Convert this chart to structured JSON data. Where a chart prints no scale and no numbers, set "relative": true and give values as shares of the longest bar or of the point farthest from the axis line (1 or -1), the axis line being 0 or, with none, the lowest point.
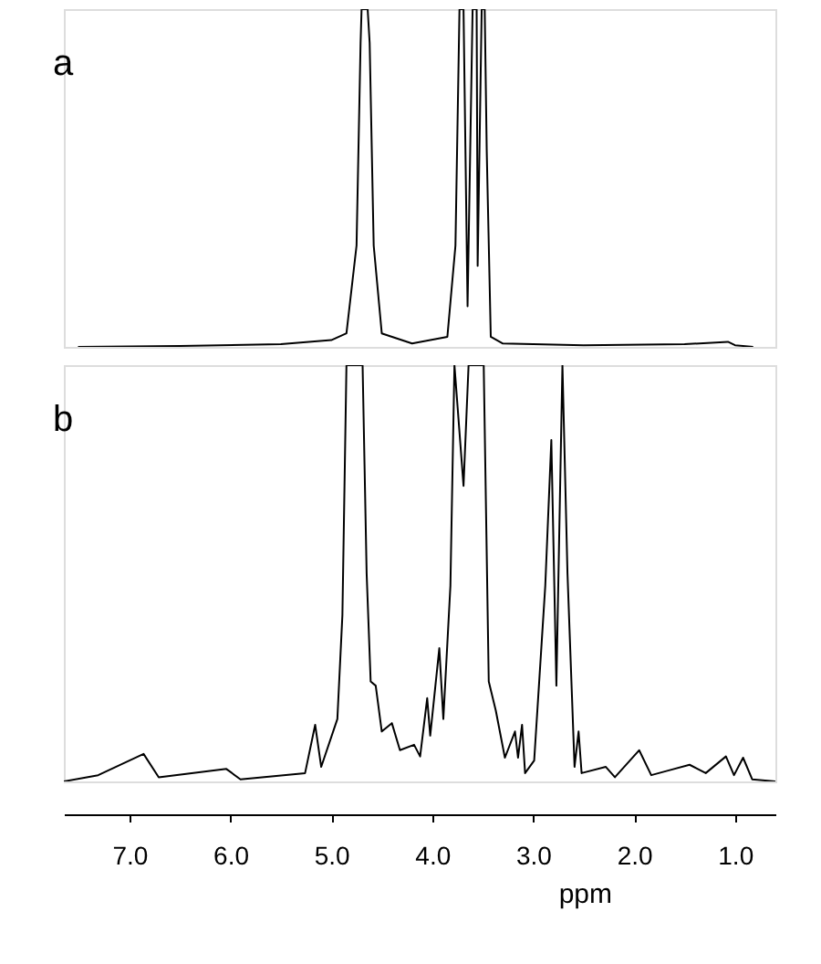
{
  "chart_data": [
    {
      "type": "line",
      "relative": true,
      "annotations": [
        "a"
      ],
      "xlim": [
        7.65,
        0.6
      ],
      "tick_labels": false,
      "series": [
        {
          "color": "#000000",
          "x": [
            7.51,
            6.5,
            5.5,
            5.0,
            4.85,
            4.75,
            4.71,
            4.7,
            4.64,
            4.62,
            4.58,
            4.5,
            4.2,
            3.85,
            3.77,
            3.73,
            3.69,
            3.65,
            3.6,
            3.56,
            3.55,
            3.51,
            3.48,
            3.46,
            3.42,
            3.3,
            2.5,
            1.5,
            1.07,
            1.0,
            0.82
          ],
          "values": [
            0,
            0.003,
            0.008,
            0.02,
            0.04,
            0.3,
            0.9,
            1,
            1,
            0.9,
            0.3,
            0.04,
            0.01,
            0.03,
            0.3,
            1,
            1,
            0.12,
            1,
            1,
            0.24,
            1,
            1,
            0.58,
            0.03,
            0.01,
            0.005,
            0.008,
            0.015,
            0.005,
            0
          ]
        }
      ]
    },
    {
      "type": "line",
      "relative": true,
      "annotations": [
        "b"
      ],
      "xlim": [
        7.65,
        0.6
      ],
      "tick_labels": "x",
      "xlabel": "ppm",
      "xticks": [
        {
          "value": 7,
          "label": "7.0"
        },
        {
          "value": 6,
          "label": "6.0"
        },
        {
          "value": 5,
          "label": "5.0"
        },
        {
          "value": 4,
          "label": "4.0"
        },
        {
          "value": 3,
          "label": "3.0"
        },
        {
          "value": 2,
          "label": "2.0"
        },
        {
          "value": 1,
          "label": "1.0"
        }
      ],
      "series": [
        {
          "color": "#000000",
          "x": [
            7.65,
            7.31,
            6.86,
            6.71,
            6.04,
            5.9,
            5.26,
            5.16,
            5.1,
            4.94,
            4.89,
            4.85,
            4.69,
            4.65,
            4.61,
            4.56,
            4.5,
            4.4,
            4.32,
            4.18,
            4.12,
            4.05,
            4.02,
            3.93,
            3.89,
            3.82,
            3.78,
            3.69,
            3.64,
            3.49,
            3.44,
            3.37,
            3.28,
            3.18,
            3.15,
            3.11,
            3.08,
            2.99,
            2.88,
            2.82,
            2.77,
            2.71,
            2.66,
            2.59,
            2.55,
            2.52,
            2.28,
            2.19,
            1.95,
            1.83,
            1.68,
            1.45,
            1.29,
            1.09,
            1.01,
            0.92,
            0.83,
            0.6
          ],
          "values": [
            0,
            0.015,
            0.066,
            0.01,
            0.03,
            0.005,
            0.02,
            0.136,
            0.035,
            0.15,
            0.4,
            1,
            1,
            0.5,
            0.24,
            0.23,
            0.12,
            0.14,
            0.075,
            0.088,
            0.06,
            0.2,
            0.11,
            0.32,
            0.15,
            0.47,
            1,
            0.71,
            1,
            1,
            0.24,
            0.17,
            0.057,
            0.12,
            0.057,
            0.136,
            0.02,
            0.05,
            0.47,
            0.82,
            0.23,
            1,
            0.5,
            0.035,
            0.12,
            0.02,
            0.035,
            0.01,
            0.075,
            0.015,
            0.025,
            0.04,
            0.02,
            0.06,
            0.015,
            0.057,
            0.005,
            0
          ]
        }
      ]
    }
  ]
}
